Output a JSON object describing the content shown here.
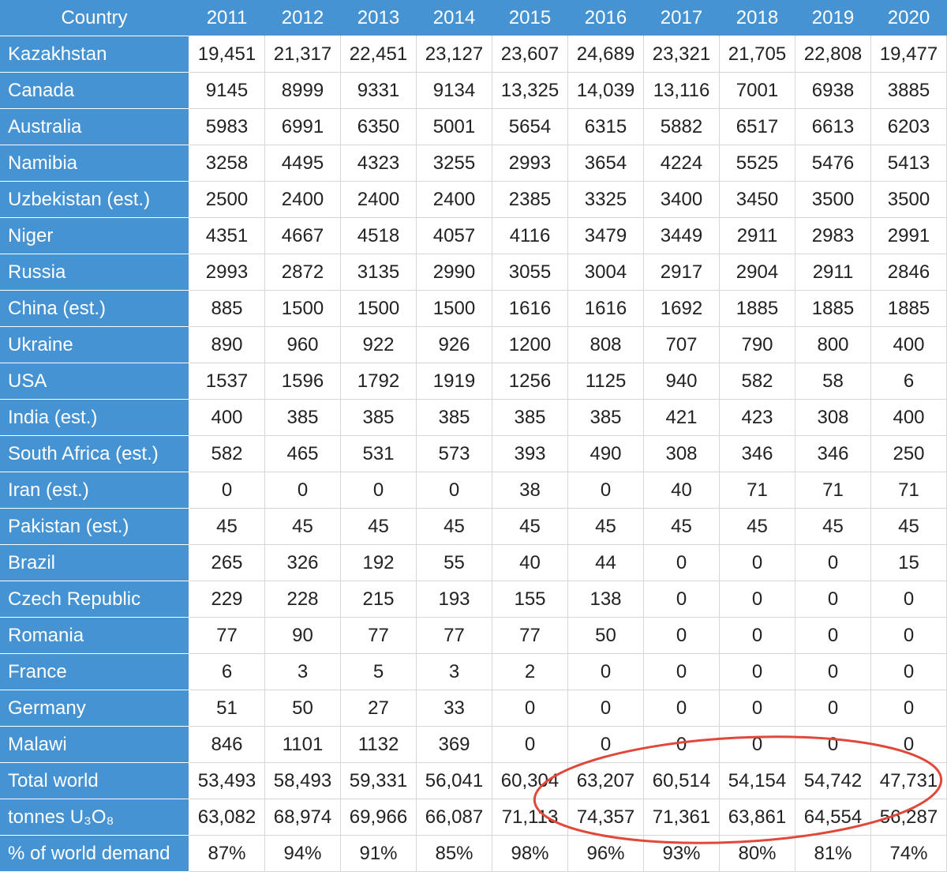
{
  "table": {
    "header": [
      "Country",
      "2011",
      "2012",
      "2013",
      "2014",
      "2015",
      "2016",
      "2017",
      "2018",
      "2019",
      "2020"
    ],
    "rows": [
      [
        "Kazakhstan",
        "19,451",
        "21,317",
        "22,451",
        "23,127",
        "23,607",
        "24,689",
        "23,321",
        "21,705",
        "22,808",
        "19,477"
      ],
      [
        "Canada",
        "9145",
        "8999",
        "9331",
        "9134",
        "13,325",
        "14,039",
        "13,116",
        "7001",
        "6938",
        "3885"
      ],
      [
        "Australia",
        "5983",
        "6991",
        "6350",
        "5001",
        "5654",
        "6315",
        "5882",
        "6517",
        "6613",
        "6203"
      ],
      [
        "Namibia",
        "3258",
        "4495",
        "4323",
        "3255",
        "2993",
        "3654",
        "4224",
        "5525",
        "5476",
        "5413"
      ],
      [
        "Uzbekistan (est.)",
        "2500",
        "2400",
        "2400",
        "2400",
        "2385",
        "3325",
        "3400",
        "3450",
        "3500",
        "3500"
      ],
      [
        "Niger",
        "4351",
        "4667",
        "4518",
        "4057",
        "4116",
        "3479",
        "3449",
        "2911",
        "2983",
        "2991"
      ],
      [
        "Russia",
        "2993",
        "2872",
        "3135",
        "2990",
        "3055",
        "3004",
        "2917",
        "2904",
        "2911",
        "2846"
      ],
      [
        "China (est.)",
        "885",
        "1500",
        "1500",
        "1500",
        "1616",
        "1616",
        "1692",
        "1885",
        "1885",
        "1885"
      ],
      [
        "Ukraine",
        "890",
        "960",
        "922",
        "926",
        "1200",
        "808",
        "707",
        "790",
        "800",
        "400"
      ],
      [
        "USA",
        "1537",
        "1596",
        "1792",
        "1919",
        "1256",
        "1125",
        "940",
        "582",
        "58",
        "6"
      ],
      [
        "India (est.)",
        "400",
        "385",
        "385",
        "385",
        "385",
        "385",
        "421",
        "423",
        "308",
        "400"
      ],
      [
        "South Africa (est.)",
        "582",
        "465",
        "531",
        "573",
        "393",
        "490",
        "308",
        "346",
        "346",
        "250"
      ],
      [
        "Iran (est.)",
        "0",
        "0",
        "0",
        "0",
        "38",
        "0",
        "40",
        "71",
        "71",
        "71"
      ],
      [
        "Pakistan (est.)",
        "45",
        "45",
        "45",
        "45",
        "45",
        "45",
        "45",
        "45",
        "45",
        "45"
      ],
      [
        "Brazil",
        "265",
        "326",
        "192",
        "55",
        "40",
        "44",
        "0",
        "0",
        "0",
        "15"
      ],
      [
        "Czech Republic",
        "229",
        "228",
        "215",
        "193",
        "155",
        "138",
        "0",
        "0",
        "0",
        "0"
      ],
      [
        "Romania",
        "77",
        "90",
        "77",
        "77",
        "77",
        "50",
        "0",
        "0",
        "0",
        "0"
      ],
      [
        "France",
        "6",
        "3",
        "5",
        "3",
        "2",
        "0",
        "0",
        "0",
        "0",
        "0"
      ],
      [
        "Germany",
        "51",
        "50",
        "27",
        "33",
        "0",
        "0",
        "0",
        "0",
        "0",
        "0"
      ],
      [
        "Malawi",
        "846",
        "1101",
        "1132",
        "369",
        "0",
        "0",
        "0",
        "0",
        "0",
        "0"
      ],
      [
        "Total world",
        "53,493",
        "58,493",
        "59,331",
        "56,041",
        "60,304",
        "63,207",
        "60,514",
        "54,154",
        "54,742",
        "47,731"
      ],
      [
        "tonnes U₃O₈",
        "63,082",
        "68,974",
        "69,966",
        "66,087",
        "71,113",
        "74,357",
        "71,361",
        "63,861",
        "64,554",
        "56,287"
      ],
      [
        "% of world demand",
        "87%",
        "94%",
        "91%",
        "85%",
        "98%",
        "96%",
        "93%",
        "80%",
        "81%",
        "74%"
      ]
    ]
  }
}
